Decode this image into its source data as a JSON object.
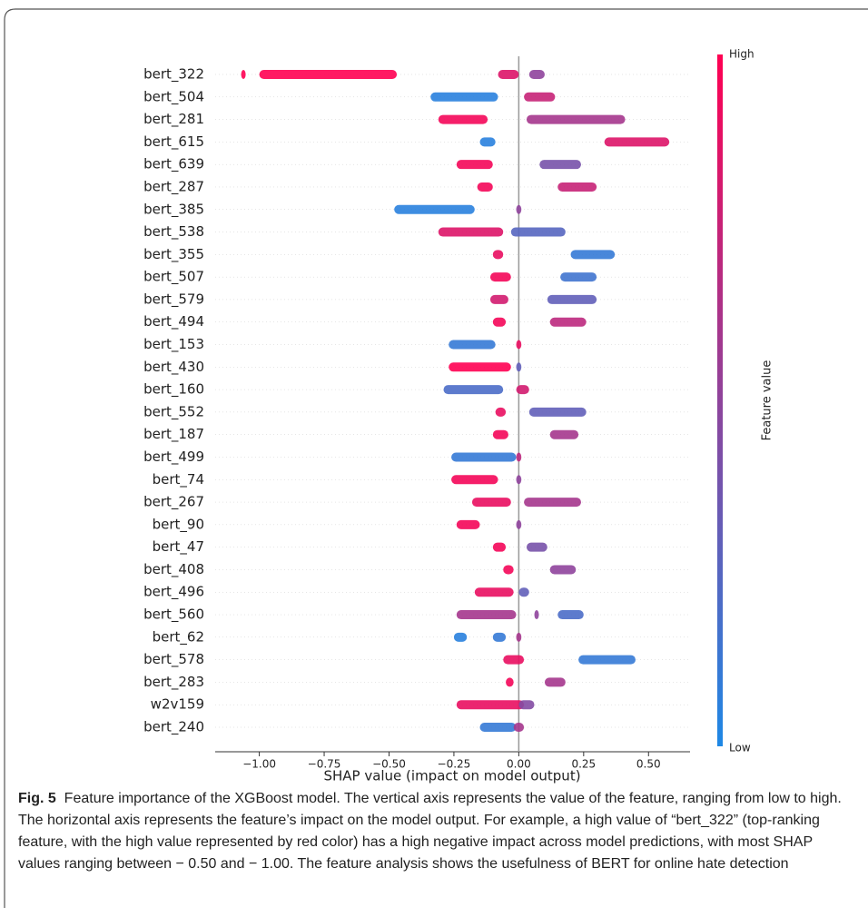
{
  "chart_data": {
    "type": "beeswarm",
    "xlabel": "SHAP value (impact on model output)",
    "categories": [
      "bert_322",
      "bert_504",
      "bert_281",
      "bert_615",
      "bert_639",
      "bert_287",
      "bert_385",
      "bert_538",
      "bert_355",
      "bert_507",
      "bert_579",
      "bert_494",
      "bert_153",
      "bert_430",
      "bert_160",
      "bert_552",
      "bert_187",
      "bert_499",
      "bert_74",
      "bert_267",
      "bert_90",
      "bert_47",
      "bert_408",
      "bert_496",
      "bert_560",
      "bert_62",
      "bert_578",
      "bert_283",
      "w2v159",
      "bert_240"
    ],
    "segments": [
      [
        [
          -1.07,
          -1.06,
          1
        ],
        [
          -1.0,
          -0.47,
          1
        ],
        [
          -0.08,
          0.0,
          0.85
        ],
        [
          0.04,
          0.1,
          0.5
        ]
      ],
      [
        [
          -0.34,
          -0.08,
          0.05
        ],
        [
          0.02,
          0.14,
          0.75
        ]
      ],
      [
        [
          -0.31,
          -0.12,
          0.95
        ],
        [
          0.03,
          0.41,
          0.6
        ]
      ],
      [
        [
          -0.15,
          -0.09,
          0.05
        ],
        [
          0.33,
          0.58,
          0.85
        ]
      ],
      [
        [
          -0.24,
          -0.1,
          0.95
        ],
        [
          0.08,
          0.24,
          0.4
        ]
      ],
      [
        [
          -0.16,
          -0.1,
          0.95
        ],
        [
          0.15,
          0.3,
          0.75
        ]
      ],
      [
        [
          -0.48,
          -0.17,
          0.05
        ],
        [
          -0.01,
          0.01,
          0.5
        ]
      ],
      [
        [
          -0.31,
          -0.06,
          0.85
        ],
        [
          -0.03,
          0.18,
          0.25
        ]
      ],
      [
        [
          -0.1,
          -0.06,
          0.9
        ],
        [
          0.2,
          0.37,
          0.1
        ]
      ],
      [
        [
          -0.11,
          -0.03,
          0.95
        ],
        [
          0.16,
          0.3,
          0.15
        ]
      ],
      [
        [
          -0.11,
          -0.04,
          0.8
        ],
        [
          0.11,
          0.3,
          0.3
        ]
      ],
      [
        [
          -0.1,
          -0.05,
          0.95
        ],
        [
          0.12,
          0.26,
          0.7
        ]
      ],
      [
        [
          -0.27,
          -0.09,
          0.1
        ],
        [
          -0.01,
          0.01,
          0.9
        ]
      ],
      [
        [
          -0.27,
          -0.03,
          1
        ],
        [
          -0.01,
          0.01,
          0.3
        ]
      ],
      [
        [
          -0.29,
          -0.06,
          0.2
        ],
        [
          -0.01,
          0.04,
          0.8
        ]
      ],
      [
        [
          -0.09,
          -0.05,
          0.9
        ],
        [
          0.04,
          0.26,
          0.3
        ]
      ],
      [
        [
          -0.1,
          -0.04,
          0.95
        ],
        [
          0.12,
          0.23,
          0.6
        ]
      ],
      [
        [
          -0.26,
          -0.01,
          0.1
        ],
        [
          -0.01,
          0.01,
          0.7
        ]
      ],
      [
        [
          -0.26,
          -0.08,
          0.95
        ],
        [
          -0.01,
          0.01,
          0.5
        ]
      ],
      [
        [
          -0.18,
          -0.03,
          0.9
        ],
        [
          0.02,
          0.24,
          0.6
        ]
      ],
      [
        [
          -0.24,
          -0.15,
          0.95
        ],
        [
          -0.01,
          0.01,
          0.5
        ]
      ],
      [
        [
          -0.1,
          -0.05,
          0.95
        ],
        [
          0.03,
          0.11,
          0.4
        ]
      ],
      [
        [
          -0.06,
          -0.02,
          0.95
        ],
        [
          0.12,
          0.22,
          0.5
        ]
      ],
      [
        [
          -0.17,
          -0.02,
          0.9
        ],
        [
          0.0,
          0.04,
          0.3
        ]
      ],
      [
        [
          -0.24,
          -0.01,
          0.6
        ],
        [
          0.06,
          0.07,
          0.5
        ],
        [
          0.15,
          0.25,
          0.2
        ]
      ],
      [
        [
          -0.25,
          -0.2,
          0.05
        ],
        [
          -0.1,
          -0.05,
          0.1
        ],
        [
          -0.01,
          0.01,
          0.6
        ]
      ],
      [
        [
          -0.06,
          0.02,
          0.9
        ],
        [
          0.23,
          0.45,
          0.1
        ]
      ],
      [
        [
          -0.05,
          -0.02,
          0.95
        ],
        [
          0.1,
          0.18,
          0.6
        ]
      ],
      [
        [
          -0.24,
          0.02,
          0.9
        ],
        [
          0.0,
          0.06,
          0.45
        ]
      ],
      [
        [
          -0.15,
          -0.01,
          0.1
        ],
        [
          -0.02,
          0.02,
          0.6
        ]
      ]
    ],
    "xlim": [
      -1.17,
      0.66
    ],
    "xticks": [
      {
        "value": -1,
        "label": "−1.00"
      },
      {
        "value": -0.75,
        "label": "−0.75"
      },
      {
        "value": -0.5,
        "label": "−0.50"
      },
      {
        "value": -0.25,
        "label": "−0.25"
      },
      {
        "value": 0,
        "label": "0.00"
      },
      {
        "value": 0.25,
        "label": "0.25"
      },
      {
        "value": 0.5,
        "label": "0.50"
      }
    ],
    "colorbar": {
      "label": "Feature value",
      "high": "High",
      "low": "Low",
      "colors": [
        "#1e88e5",
        "#ff0052"
      ]
    }
  },
  "caption": {
    "label": "Fig. 5",
    "text": "Feature importance of the XGBoost model. The vertical axis represents the value of the feature, ranging from low to high. The horizontal axis represents the feature’s impact on the model output. For example, a high value of “bert_322” (top-ranking feature, with the high value represented by red color) has a high negative impact across model predictions, with most SHAP values ranging between − 0.50 and − 1.00. The feature analysis shows the usefulness of BERT for online hate detection"
  }
}
